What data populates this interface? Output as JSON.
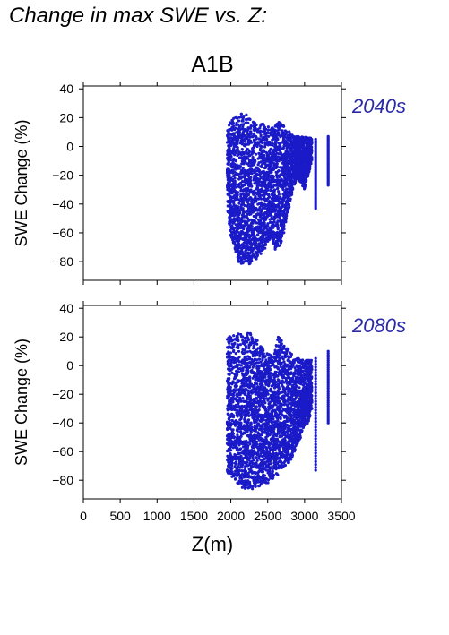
{
  "figure": {
    "title": "Change in max SWE vs. Z:",
    "scenario": "A1B"
  },
  "colors": {
    "points": "#1a1ac8",
    "period_label": "#2a2aa8",
    "axes": "#000000",
    "background": "#ffffff"
  },
  "chart_data": [
    {
      "type": "scatter",
      "period": "2040s",
      "title": "A1B",
      "xlabel": "",
      "ylabel": "SWE Change (%)",
      "xlim": [
        0,
        3500
      ],
      "ylim": [
        -93,
        42
      ],
      "yticks": [
        40,
        20,
        0,
        -20,
        -40,
        -60,
        -80
      ],
      "xticks": [
        0,
        500,
        1000,
        1500,
        2000,
        2500,
        3000,
        3500
      ],
      "xtick_labels_shown": false,
      "grid": false,
      "envelope": [
        [
          1950,
          12,
          -45
        ],
        [
          2000,
          18,
          -62
        ],
        [
          2050,
          20,
          -72
        ],
        [
          2100,
          22,
          -80
        ],
        [
          2150,
          24,
          -82
        ],
        [
          2200,
          23,
          -80
        ],
        [
          2250,
          20,
          -82
        ],
        [
          2300,
          18,
          -80
        ],
        [
          2350,
          16,
          -78
        ],
        [
          2400,
          15,
          -75
        ],
        [
          2450,
          18,
          -72
        ],
        [
          2500,
          14,
          -68
        ],
        [
          2550,
          13,
          -62
        ],
        [
          2600,
          15,
          -72
        ],
        [
          2650,
          17,
          -70
        ],
        [
          2700,
          16,
          -65
        ],
        [
          2750,
          12,
          -52
        ],
        [
          2800,
          10,
          -40
        ],
        [
          2850,
          8,
          -28
        ],
        [
          2900,
          8,
          -22
        ],
        [
          2950,
          7,
          -25
        ],
        [
          3000,
          7,
          -30
        ],
        [
          3050,
          6,
          -20
        ],
        [
          3100,
          6,
          -10
        ]
      ],
      "columns": [
        [
          3150,
          5,
          -43
        ],
        [
          3320,
          7,
          -27
        ]
      ]
    },
    {
      "type": "scatter",
      "period": "2080s",
      "title": "",
      "xlabel": "Z(m)",
      "ylabel": "SWE Change (%)",
      "xlim": [
        0,
        3500
      ],
      "ylim": [
        -93,
        42
      ],
      "yticks": [
        40,
        20,
        0,
        -20,
        -40,
        -60,
        -80
      ],
      "xticks": [
        0,
        500,
        1000,
        1500,
        2000,
        2500,
        3000,
        3500
      ],
      "xtick_labels_shown": true,
      "grid": false,
      "envelope": [
        [
          1950,
          22,
          -75
        ],
        [
          2000,
          22,
          -78
        ],
        [
          2050,
          22,
          -80
        ],
        [
          2100,
          23,
          -83
        ],
        [
          2150,
          22,
          -85
        ],
        [
          2200,
          21,
          -86
        ],
        [
          2250,
          24,
          -86
        ],
        [
          2300,
          20,
          -86
        ],
        [
          2350,
          18,
          -85
        ],
        [
          2400,
          16,
          -84
        ],
        [
          2450,
          14,
          -83
        ],
        [
          2500,
          10,
          -82
        ],
        [
          2550,
          8,
          -80
        ],
        [
          2600,
          12,
          -78
        ],
        [
          2650,
          22,
          -76
        ],
        [
          2700,
          16,
          -72
        ],
        [
          2750,
          14,
          -70
        ],
        [
          2800,
          10,
          -68
        ],
        [
          2850,
          6,
          -62
        ],
        [
          2900,
          5,
          -55
        ],
        [
          2950,
          5,
          -50
        ],
        [
          3000,
          4,
          -42
        ],
        [
          3050,
          4,
          -40
        ],
        [
          3100,
          4,
          -30
        ]
      ],
      "columns": [
        [
          3150,
          5,
          -73
        ],
        [
          3320,
          10,
          -40
        ]
      ]
    }
  ]
}
